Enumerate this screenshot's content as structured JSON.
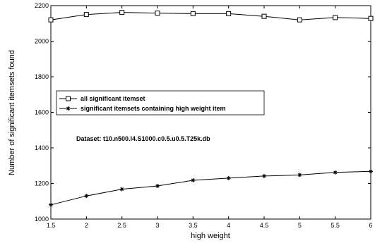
{
  "chart_data": {
    "type": "line",
    "title": "",
    "xlabel": "high weight",
    "ylabel": "Number of significant itemsets found",
    "x": [
      1.5,
      2,
      2.5,
      3,
      3.5,
      4,
      4.5,
      5,
      5.5,
      6
    ],
    "x_ticks": [
      "1.5",
      "2",
      "2.5",
      "3",
      "3.5",
      "4",
      "4.5",
      "5",
      "5.5",
      "6"
    ],
    "y_ticks": [
      "1000",
      "1200",
      "1400",
      "1600",
      "1800",
      "2000",
      "2200"
    ],
    "xlim": [
      1.5,
      6
    ],
    "ylim": [
      1000,
      2200
    ],
    "grid": false,
    "legend_position": "middle-left",
    "series": [
      {
        "name": "all significant itemset",
        "marker": "square",
        "values": [
          2120,
          2150,
          2162,
          2158,
          2155,
          2155,
          2140,
          2120,
          2133,
          2128
        ]
      },
      {
        "name": "significant itemsets containing high weight item",
        "marker": "star",
        "values": [
          1080,
          1130,
          1168,
          1186,
          1218,
          1230,
          1242,
          1248,
          1262,
          1268
        ]
      }
    ],
    "annotations": [
      "Dataset: t10.n500.l4.S1000.c0.5.u0.5.T25k.db"
    ]
  }
}
